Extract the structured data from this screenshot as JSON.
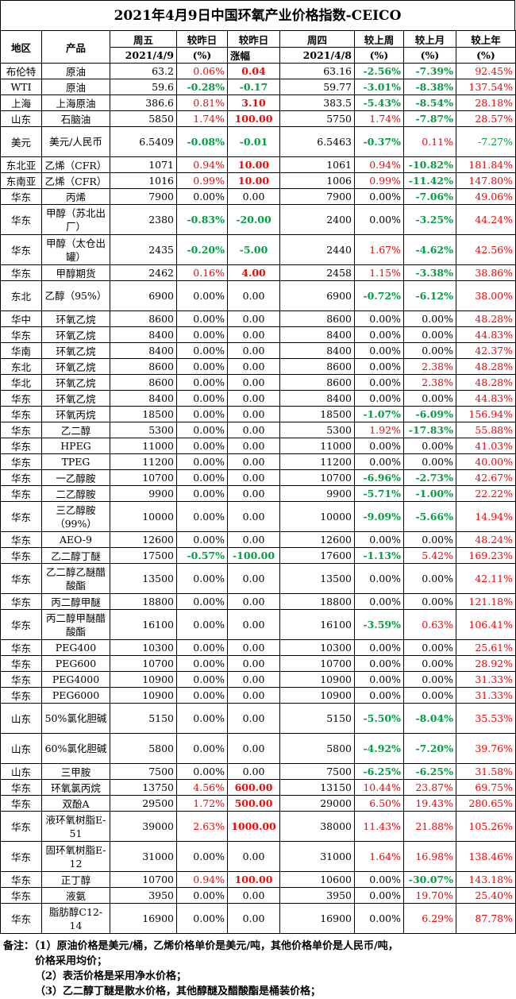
{
  "title": "2021年4月9日中国环氧产业价格指数-CEICO",
  "header": {
    "region": "地区",
    "product": "产品",
    "fri": "周五",
    "fri_date": "2021/4/9",
    "dod": "较昨日",
    "dod_unit": "(%)",
    "dod_abs": "较昨日",
    "dod_abs_sub": "涨幅",
    "thu": "周四",
    "thu_date": "2021/4/8",
    "wow": "较上周",
    "wow_unit": "(%)",
    "mom": "较上月",
    "mom_unit": "(%)",
    "yoy": "较上年",
    "yoy_unit": "(%)"
  },
  "rows": [
    {
      "region": "布伦特",
      "product": "原油",
      "fri": "63.2",
      "dod": "0.06%",
      "chg": "0.04",
      "thu": "63.16",
      "wow": "-2.56%",
      "mom": "-7.39%",
      "yoy": "92.45%",
      "h": 19
    },
    {
      "region": "WTI",
      "product": "原油",
      "fri": "59.6",
      "dod": "-0.28%",
      "chg": "-0.17",
      "thu": "59.77",
      "wow": "-3.01%",
      "mom": "-8.38%",
      "yoy": "137.54%",
      "h": 19
    },
    {
      "region": "上海",
      "product": "上海原油",
      "fri": "386.6",
      "dod": "0.81%",
      "chg": "3.10",
      "thu": "383.5",
      "wow": "-5.43%",
      "mom": "-8.54%",
      "yoy": "28.18%",
      "h": 19
    },
    {
      "region": "山东",
      "product": "石脑油",
      "fri": "5850",
      "dod": "1.74%",
      "chg": "100.00",
      "thu": "5750",
      "wow": "1.74%",
      "mom": "-7.87%",
      "yoy": "28.57%",
      "h": 19
    },
    {
      "region": "美元",
      "product": "美元/人民币",
      "fri": "6.5409",
      "dod": "-0.08%",
      "chg": "-0.01",
      "thu": "6.5463",
      "wow": "-0.37%",
      "mom": "0.11%",
      "yoy": "-7.27%",
      "h": 38
    },
    {
      "region": "东北亚",
      "product": "乙烯（CFR）",
      "fri": "1071",
      "dod": "0.94%",
      "chg": "10.00",
      "thu": "1061",
      "wow": "0.94%",
      "mom": "-10.82%",
      "yoy": "181.84%",
      "h": 19
    },
    {
      "region": "东南亚",
      "product": "乙烯（CFR）",
      "fri": "1016",
      "dod": "0.99%",
      "chg": "10.00",
      "thu": "1006",
      "wow": "0.99%",
      "mom": "-11.42%",
      "yoy": "147.80%",
      "h": 19
    },
    {
      "region": "华东",
      "product": "丙烯",
      "fri": "7900",
      "dod": "0.00%",
      "chg": "0.00",
      "thu": "7900",
      "wow": "0.00%",
      "mom": "-7.06%",
      "yoy": "49.06%",
      "h": 19
    },
    {
      "region": "华东",
      "product": "甲醇（苏北出厂）",
      "fri": "2380",
      "dod": "-0.83%",
      "chg": "-20.00",
      "thu": "2400",
      "wow": "0.00%",
      "mom": "-3.25%",
      "yoy": "44.24%",
      "h": 38
    },
    {
      "region": "华东",
      "product": "甲醇（太仓出罐）",
      "fri": "2435",
      "dod": "-0.20%",
      "chg": "-5.00",
      "thu": "2440",
      "wow": "1.67%",
      "mom": "-4.62%",
      "yoy": "42.56%",
      "h": 38
    },
    {
      "region": "华东",
      "product": "甲醇期货",
      "fri": "2462",
      "dod": "0.16%",
      "chg": "4.00",
      "thu": "2458",
      "wow": "1.15%",
      "mom": "-3.38%",
      "yoy": "38.86%",
      "h": 19
    },
    {
      "region": "东北",
      "product": "乙醇（95%）",
      "fri": "6900",
      "dod": "0.00%",
      "chg": "0.00",
      "thu": "6900",
      "wow": "-0.72%",
      "mom": "-6.12%",
      "yoy": "38.00%",
      "h": 38
    },
    {
      "region": "华中",
      "product": "环氧乙烷",
      "fri": "8600",
      "dod": "0.00%",
      "chg": "0.00",
      "thu": "8600",
      "wow": "0.00%",
      "mom": "0.00%",
      "yoy": "48.28%",
      "h": 19
    },
    {
      "region": "华东",
      "product": "环氧乙烷",
      "fri": "8400",
      "dod": "0.00%",
      "chg": "0.00",
      "thu": "8400",
      "wow": "0.00%",
      "mom": "0.00%",
      "yoy": "44.83%",
      "h": 19
    },
    {
      "region": "华南",
      "product": "环氧乙烷",
      "fri": "8400",
      "dod": "0.00%",
      "chg": "0.00",
      "thu": "8400",
      "wow": "0.00%",
      "mom": "0.00%",
      "yoy": "42.37%",
      "h": 19
    },
    {
      "region": "东北",
      "product": "环氧乙烷",
      "fri": "8600",
      "dod": "0.00%",
      "chg": "0.00",
      "thu": "8600",
      "wow": "0.00%",
      "mom": "2.38%",
      "yoy": "48.28%",
      "h": 19
    },
    {
      "region": "华北",
      "product": "环氧乙烷",
      "fri": "8600",
      "dod": "0.00%",
      "chg": "0.00",
      "thu": "8600",
      "wow": "0.00%",
      "mom": "2.38%",
      "yoy": "48.28%",
      "h": 19
    },
    {
      "region": "华东",
      "product": "环氧乙烷",
      "fri": "8400",
      "dod": "0.00%",
      "chg": "0.00",
      "thu": "8400",
      "wow": "0.00%",
      "mom": "0.00%",
      "yoy": "44.83%",
      "h": 19
    },
    {
      "region": "华东",
      "product": "环氧丙烷",
      "fri": "18500",
      "dod": "0.00%",
      "chg": "0.00",
      "thu": "18500",
      "wow": "-1.07%",
      "mom": "-6.09%",
      "yoy": "156.94%",
      "h": 19
    },
    {
      "region": "华东",
      "product": "乙二醇",
      "fri": "5300",
      "dod": "0.00%",
      "chg": "0.00",
      "thu": "5300",
      "wow": "1.92%",
      "mom": "-17.83%",
      "yoy": "55.88%",
      "h": 19
    },
    {
      "region": "华东",
      "product": "HPEG",
      "fri": "11000",
      "dod": "0.00%",
      "chg": "0.00",
      "thu": "11000",
      "wow": "0.00%",
      "mom": "0.00%",
      "yoy": "41.03%",
      "h": 19
    },
    {
      "region": "华东",
      "product": "TPEG",
      "fri": "11200",
      "dod": "0.00%",
      "chg": "0.00",
      "thu": "11200",
      "wow": "0.00%",
      "mom": "0.00%",
      "yoy": "40.00%",
      "h": 19
    },
    {
      "region": "华东",
      "product": "一乙醇胺",
      "fri": "10700",
      "dod": "0.00%",
      "chg": "0.00",
      "thu": "10700",
      "wow": "-6.96%",
      "mom": "-2.73%",
      "yoy": "42.67%",
      "h": 19
    },
    {
      "region": "华东",
      "product": "二乙醇胺",
      "fri": "9900",
      "dod": "0.00%",
      "chg": "0.00",
      "thu": "9900",
      "wow": "-5.71%",
      "mom": "-1.00%",
      "yoy": "22.22%",
      "h": 19
    },
    {
      "region": "华东",
      "product": "三乙醇胺（99%）",
      "fri": "10000",
      "dod": "0.00%",
      "chg": "0.00",
      "thu": "10000",
      "wow": "-9.09%",
      "mom": "-5.66%",
      "yoy": "14.94%",
      "h": 38
    },
    {
      "region": "华东",
      "product": "AEO-9",
      "fri": "12600",
      "dod": "0.00%",
      "chg": "0.00",
      "thu": "12600",
      "wow": "0.00%",
      "mom": "0.00%",
      "yoy": "48.24%",
      "h": 19
    },
    {
      "region": "华东",
      "product": "乙二醇丁醚",
      "fri": "17500",
      "dod": "-0.57%",
      "chg": "-100.00",
      "thu": "17600",
      "wow": "-1.13%",
      "mom": "5.42%",
      "yoy": "169.23%",
      "h": 19
    },
    {
      "region": "华东",
      "product": "乙二醇乙醚醋酸酯",
      "fri": "13500",
      "dod": "0.00%",
      "chg": "0.00",
      "thu": "13500",
      "wow": "0.00%",
      "mom": "0.00%",
      "yoy": "42.11%",
      "h": 38
    },
    {
      "region": "华东",
      "product": "丙二醇甲醚",
      "fri": "18800",
      "dod": "0.00%",
      "chg": "0.00",
      "thu": "18800",
      "wow": "0.00%",
      "mom": "0.00%",
      "yoy": "121.18%",
      "h": 19
    },
    {
      "region": "华东",
      "product": "丙二醇甲醚醋酸酯",
      "fri": "16100",
      "dod": "0.00%",
      "chg": "0.00",
      "thu": "16100",
      "wow": "-3.59%",
      "mom": "0.63%",
      "yoy": "106.41%",
      "h": 38
    },
    {
      "region": "华东",
      "product": "PEG400",
      "fri": "10300",
      "dod": "0.00%",
      "chg": "0.00",
      "thu": "10300",
      "wow": "0.00%",
      "mom": "0.00%",
      "yoy": "25.61%",
      "h": 19
    },
    {
      "region": "华东",
      "product": "PEG600",
      "fri": "10700",
      "dod": "0.00%",
      "chg": "0.00",
      "thu": "10700",
      "wow": "0.00%",
      "mom": "0.00%",
      "yoy": "28.92%",
      "h": 19
    },
    {
      "region": "华东",
      "product": "PEG4000",
      "fri": "10900",
      "dod": "0.00%",
      "chg": "0.00",
      "thu": "10900",
      "wow": "0.00%",
      "mom": "0.00%",
      "yoy": "31.33%",
      "h": 19
    },
    {
      "region": "华东",
      "product": "PEG6000",
      "fri": "10900",
      "dod": "0.00%",
      "chg": "0.00",
      "thu": "10900",
      "wow": "0.00%",
      "mom": "0.00%",
      "yoy": "31.33%",
      "h": 19
    },
    {
      "region": "山东",
      "product": "50%氯化胆碱",
      "fri": "5150",
      "dod": "0.00%",
      "chg": "0.00",
      "thu": "5150",
      "wow": "-5.50%",
      "mom": "-8.04%",
      "yoy": "35.53%",
      "h": 38
    },
    {
      "region": "山东",
      "product": "60%氯化胆碱",
      "fri": "5800",
      "dod": "0.00%",
      "chg": "0.00",
      "thu": "5800",
      "wow": "-4.92%",
      "mom": "-7.20%",
      "yoy": "39.76%",
      "h": 38
    },
    {
      "region": "山东",
      "product": "三甲胺",
      "fri": "7500",
      "dod": "0.00%",
      "chg": "0.00",
      "thu": "7500",
      "wow": "-6.25%",
      "mom": "-6.25%",
      "yoy": "31.58%",
      "h": 19
    },
    {
      "region": "华东",
      "product": "环氧氯丙烷",
      "fri": "13750",
      "dod": "4.56%",
      "chg": "600.00",
      "thu": "13150",
      "wow": "10.44%",
      "mom": "23.87%",
      "yoy": "69.75%",
      "h": 19
    },
    {
      "region": "华东",
      "product": "双酚A",
      "fri": "29500",
      "dod": "1.72%",
      "chg": "500.00",
      "thu": "29000",
      "wow": "6.50%",
      "mom": "19.43%",
      "yoy": "280.65%",
      "h": 19
    },
    {
      "region": "华东",
      "product": "液环氧树脂E-51",
      "fri": "39000",
      "dod": "2.63%",
      "chg": "1000.00",
      "thu": "38000",
      "wow": "11.43%",
      "mom": "21.88%",
      "yoy": "105.26%",
      "h": 38
    },
    {
      "region": "华东",
      "product": "固环氧树脂E-12",
      "fri": "31000",
      "dod": "0.00%",
      "chg": "0.00",
      "thu": "31000",
      "wow": "1.64%",
      "mom": "16.98%",
      "yoy": "138.46%",
      "h": 38
    },
    {
      "region": "华东",
      "product": "正丁醇",
      "fri": "10700",
      "dod": "0.94%",
      "chg": "100.00",
      "thu": "10600",
      "wow": "0.00%",
      "mom": "-30.07%",
      "yoy": "143.18%",
      "h": 19
    },
    {
      "region": "华东",
      "product": "液氨",
      "fri": "3950",
      "dod": "0.00%",
      "chg": "0.00",
      "thu": "3950",
      "wow": "0.00%",
      "mom": "19.70%",
      "yoy": "25.40%",
      "h": 19
    },
    {
      "region": "华东",
      "product": "脂肪醇C12-14",
      "fri": "16900",
      "dod": "0.00%",
      "chg": "0.00",
      "thu": "16900",
      "wow": "0.00%",
      "mom": "6.29%",
      "yoy": "87.78%",
      "h": 38
    }
  ],
  "notes": {
    "label": "备注：",
    "n1a": "（1）原油价格是美元/桶，乙烯价格单价是美元/吨，其他价格单价是人民币/吨，",
    "n1b": "价格采用均价；",
    "n2": "（2）表活价格是采用净水价格；",
    "n3": "（3）乙二醇丁醚是散水价格，其他醇醚及醋酸酯是桶装价格；"
  },
  "colors": {
    "up": "#ff0000",
    "down": "#00a040",
    "flat": "#000000"
  }
}
